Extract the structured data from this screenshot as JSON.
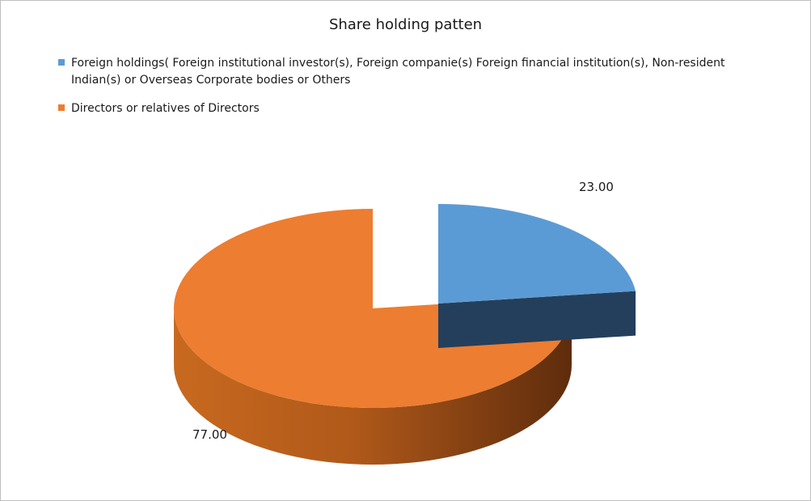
{
  "chart_data": {
    "type": "pie",
    "title": "Share holding patten",
    "series": [
      {
        "name": "Foreign holdings( Foreign institutional investor(s), Foreign companie(s) Foreign financial institution(s),  Non-resident Indian(s) or Overseas Corporate bodies or Others",
        "value": 23.0,
        "label": "23.00",
        "color": "#5b9bd5",
        "side_color": "#243f5c",
        "exploded": true
      },
      {
        "name": "Directors or relatives of Directors",
        "value": 77.0,
        "label": "77.00",
        "color": "#ed7d31",
        "side_color": "#b4601f",
        "exploded": false
      }
    ],
    "legend_position": "top",
    "style": "3d"
  }
}
